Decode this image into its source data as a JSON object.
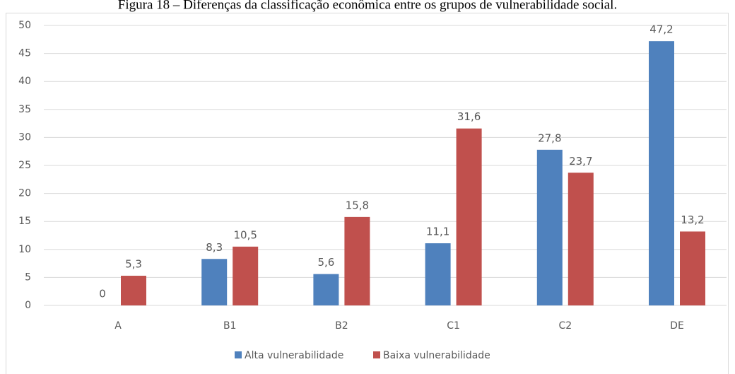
{
  "chart_data": {
    "type": "bar",
    "title": "Figura 18 – Diferenças da classificação econômica entre os grupos de vulnerabilidade social.",
    "categories": [
      "A",
      "B1",
      "B2",
      "C1",
      "C2",
      "DE"
    ],
    "series": [
      {
        "name": "Alta vulnerabilidade",
        "color": "#4f81bd",
        "values": [
          0,
          8.3,
          5.6,
          11.1,
          27.8,
          47.2
        ],
        "value_labels": [
          "0",
          "8,3",
          "5,6",
          "11,1",
          "27,8",
          "47,2"
        ]
      },
      {
        "name": "Baixa vulnerabilidade",
        "color": "#c0504d",
        "values": [
          5.3,
          10.5,
          15.8,
          31.6,
          23.7,
          13.2
        ],
        "value_labels": [
          "5,3",
          "10,5",
          "15,8",
          "31,6",
          "23,7",
          "13,2"
        ]
      }
    ],
    "ylim": [
      0,
      50
    ],
    "yticks": [
      0,
      5,
      10,
      15,
      20,
      25,
      30,
      35,
      40,
      45,
      50
    ],
    "grid": true,
    "legend": "bottom"
  }
}
